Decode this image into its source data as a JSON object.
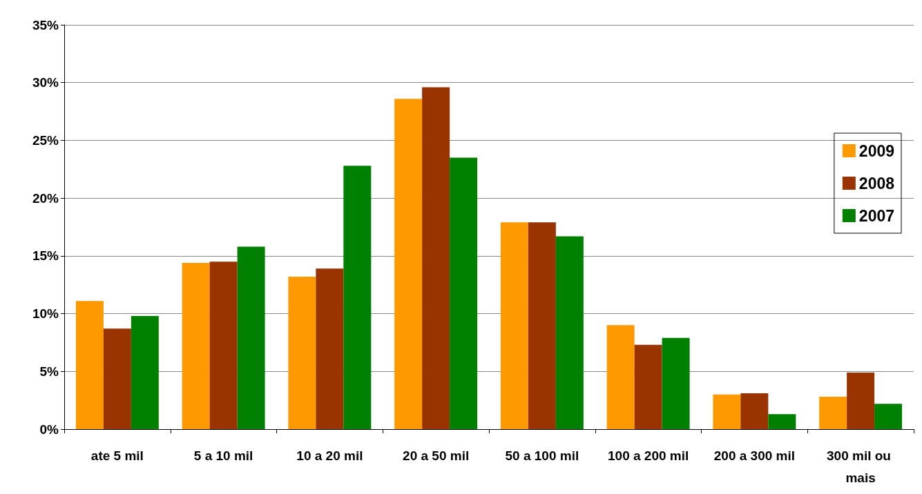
{
  "chart_data": {
    "type": "bar",
    "categories": [
      "ate 5 mil",
      "5 a 10 mil",
      "10 a 20 mil",
      "20 a 50 mil",
      "50 a 100 mil",
      "100 a 200 mil",
      "200 a 300 mil",
      "300 mil ou mais"
    ],
    "series": [
      {
        "name": "2009",
        "color": "#ff9900",
        "values": [
          11.1,
          14.4,
          13.2,
          28.6,
          17.9,
          9.0,
          3.0,
          2.8
        ]
      },
      {
        "name": "2008",
        "color": "#993300",
        "values": [
          8.7,
          14.5,
          13.9,
          29.6,
          17.9,
          7.3,
          3.1,
          4.9
        ]
      },
      {
        "name": "2007",
        "color": "#008000",
        "values": [
          9.8,
          15.8,
          22.8,
          23.5,
          16.7,
          7.9,
          1.3,
          2.2
        ]
      }
    ],
    "ylim": [
      0,
      35
    ],
    "yticks": [
      {
        "value": 0,
        "label": "0%"
      },
      {
        "value": 5,
        "label": "5%"
      },
      {
        "value": 10,
        "label": "10%"
      },
      {
        "value": 15,
        "label": "15%"
      },
      {
        "value": 20,
        "label": "20%"
      },
      {
        "value": 25,
        "label": "25%"
      },
      {
        "value": 30,
        "label": "30%"
      },
      {
        "value": 35,
        "label": "35%"
      }
    ],
    "grid": "y",
    "legend": "right"
  }
}
